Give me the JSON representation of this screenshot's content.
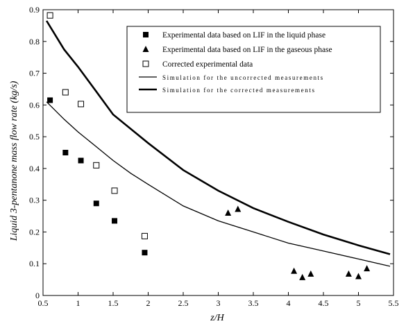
{
  "chart_data": {
    "type": "scatter",
    "xlabel": "z/H",
    "ylabel": "Liquid 3-pentanone mass flow rate (kg/s)",
    "xlim": [
      0.5,
      5.5
    ],
    "ylim": [
      0,
      0.9
    ],
    "x_ticks": [
      "0.5",
      "1",
      "1.5",
      "2",
      "2.5",
      "3",
      "3.5",
      "4",
      "4.5",
      "5",
      "5.5"
    ],
    "y_ticks": [
      "0",
      "0.1",
      "0.2",
      "0.3",
      "0.4",
      "0.5",
      "0.6",
      "0.7",
      "0.8",
      "0.9"
    ],
    "grid": false,
    "legend_position": "top-right",
    "series": [
      {
        "name": "Experimental data based on LIF in the liquid phase",
        "kind": "scatter",
        "marker": "filled-square",
        "x": [
          0.6,
          0.82,
          1.04,
          1.26,
          1.52,
          1.95
        ],
        "y": [
          0.615,
          0.45,
          0.425,
          0.29,
          0.235,
          0.135
        ]
      },
      {
        "name": "Experimental data based on LIF in the gaseous phase",
        "kind": "scatter",
        "marker": "filled-triangle",
        "x": [
          3.14,
          3.28,
          4.08,
          4.2,
          4.32,
          4.86,
          5.0,
          5.12
        ],
        "y": [
          0.26,
          0.272,
          0.077,
          0.057,
          0.068,
          0.068,
          0.06,
          0.085
        ]
      },
      {
        "name": "Corrected experimental data",
        "kind": "scatter",
        "marker": "open-square",
        "x": [
          0.6,
          0.82,
          1.04,
          1.26,
          1.52,
          1.95
        ],
        "y": [
          0.882,
          0.64,
          0.603,
          0.41,
          0.33,
          0.187
        ]
      },
      {
        "name": "Simulation for the uncorrected measurements",
        "kind": "line",
        "stroke_width": 1.3,
        "x": [
          0.55,
          0.8,
          1.0,
          1.25,
          1.5,
          1.75,
          2.0,
          2.5,
          3.0,
          3.5,
          4.0,
          4.5,
          5.0,
          5.45
        ],
        "y": [
          0.61,
          0.555,
          0.515,
          0.47,
          0.425,
          0.385,
          0.35,
          0.282,
          0.235,
          0.2,
          0.165,
          0.14,
          0.115,
          0.092
        ]
      },
      {
        "name": "Simulation for the corrected measurements",
        "kind": "line",
        "stroke_width": 2.6,
        "x": [
          0.55,
          0.8,
          1.0,
          1.25,
          1.5,
          1.75,
          2.0,
          2.5,
          3.0,
          3.5,
          4.0,
          4.5,
          5.0,
          5.45
        ],
        "y": [
          0.865,
          0.775,
          0.72,
          0.645,
          0.57,
          0.525,
          0.48,
          0.395,
          0.33,
          0.275,
          0.232,
          0.192,
          0.158,
          0.13
        ]
      }
    ]
  },
  "colors": {
    "ink": "#000000",
    "background": "#ffffff"
  }
}
